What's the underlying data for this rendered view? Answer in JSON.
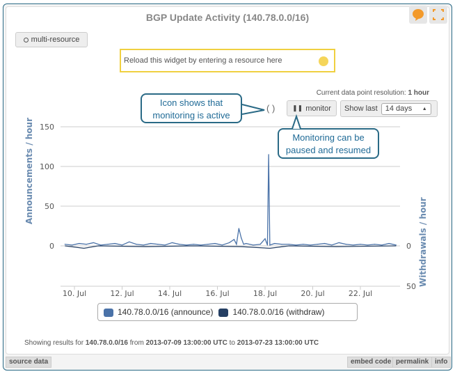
{
  "widget": {
    "title": "BGP Update Activity (140.78.0.0/16)",
    "multi_resource": "multi-resource",
    "reload_placeholder": "Reload this widget by entering a resource here",
    "resolution_label": "Current data point resolution:",
    "resolution_value": "1 hour",
    "monitor_indicator": "( )",
    "monitor_button": "monitor",
    "show_last_label": "Show last",
    "show_last_value": "14 days",
    "callout_active": [
      "Icon shows that",
      "monitoring is active"
    ],
    "callout_pause": [
      "Monitoring can be",
      "paused and resumed"
    ],
    "footer": {
      "prefix": "Showing results for",
      "resource": "140.78.0.0/16",
      "from_label": "from",
      "from": "2013-07-09 13:00:00 UTC",
      "to_label": "to",
      "to": "2013-07-23 13:00:00 UTC"
    },
    "buttons": {
      "source_data": "source data",
      "embed_code": "embed code",
      "permalink": "permalink",
      "info": "info"
    }
  },
  "colors": {
    "announce": "#4a72a8",
    "withdraw": "#253f63",
    "accent": "#f39a2b",
    "callout": "#2a6a86"
  },
  "chart_data": {
    "type": "line",
    "title": "",
    "ylabel": "Announcements / hour",
    "y2label": "Withdrawals / hour",
    "ylim": [
      0,
      150
    ],
    "yticks": [
      "150",
      "100",
      "50",
      "0"
    ],
    "y2lim": [
      0,
      50
    ],
    "y2ticks": [
      "0",
      "50"
    ],
    "xticks": [
      "10. Jul",
      "12. Jul",
      "14. Jul",
      "16. Jul",
      "18. Jul",
      "20. Jul",
      "22. Jul"
    ],
    "xtick_days": [
      10,
      12,
      14,
      16,
      18,
      20,
      22
    ],
    "series": [
      {
        "name": "140.78.0.0/16 (announce)",
        "x_days": [
          9.6,
          9.9,
          10.2,
          10.5,
          10.8,
          11.1,
          11.4,
          11.7,
          12.0,
          12.3,
          12.6,
          12.9,
          13.2,
          13.5,
          13.8,
          14.1,
          14.4,
          14.7,
          15.0,
          15.3,
          15.6,
          15.9,
          16.2,
          16.5,
          16.7,
          16.8,
          16.9,
          17.0,
          17.1,
          17.2,
          17.5,
          17.8,
          18.0,
          18.1,
          18.15,
          18.2,
          18.4,
          18.7,
          19.0,
          19.3,
          19.6,
          19.9,
          20.2,
          20.5,
          20.8,
          21.1,
          21.4,
          21.7,
          22.0,
          22.3,
          22.6,
          22.9,
          23.2,
          23.5
        ],
        "values": [
          2,
          1,
          3,
          2,
          4,
          1,
          2,
          3,
          1,
          5,
          2,
          1,
          3,
          2,
          1,
          4,
          2,
          1,
          2,
          1,
          2,
          3,
          1,
          4,
          8,
          2,
          22,
          10,
          2,
          3,
          1,
          2,
          9,
          1,
          115,
          1,
          3,
          2,
          2,
          1,
          2,
          1,
          2,
          3,
          1,
          4,
          2,
          1,
          2,
          1,
          2,
          1,
          3,
          1
        ]
      },
      {
        "name": "140.78.0.0/16 (withdraw)",
        "x_days": [
          9.6,
          10.4,
          11.0,
          13.0,
          15.0,
          17.0,
          18.2,
          19.0,
          21.0,
          23.5
        ],
        "values": [
          0,
          3,
          0,
          1,
          0,
          1,
          3,
          0,
          1,
          0
        ]
      }
    ],
    "legend": "bottom"
  }
}
